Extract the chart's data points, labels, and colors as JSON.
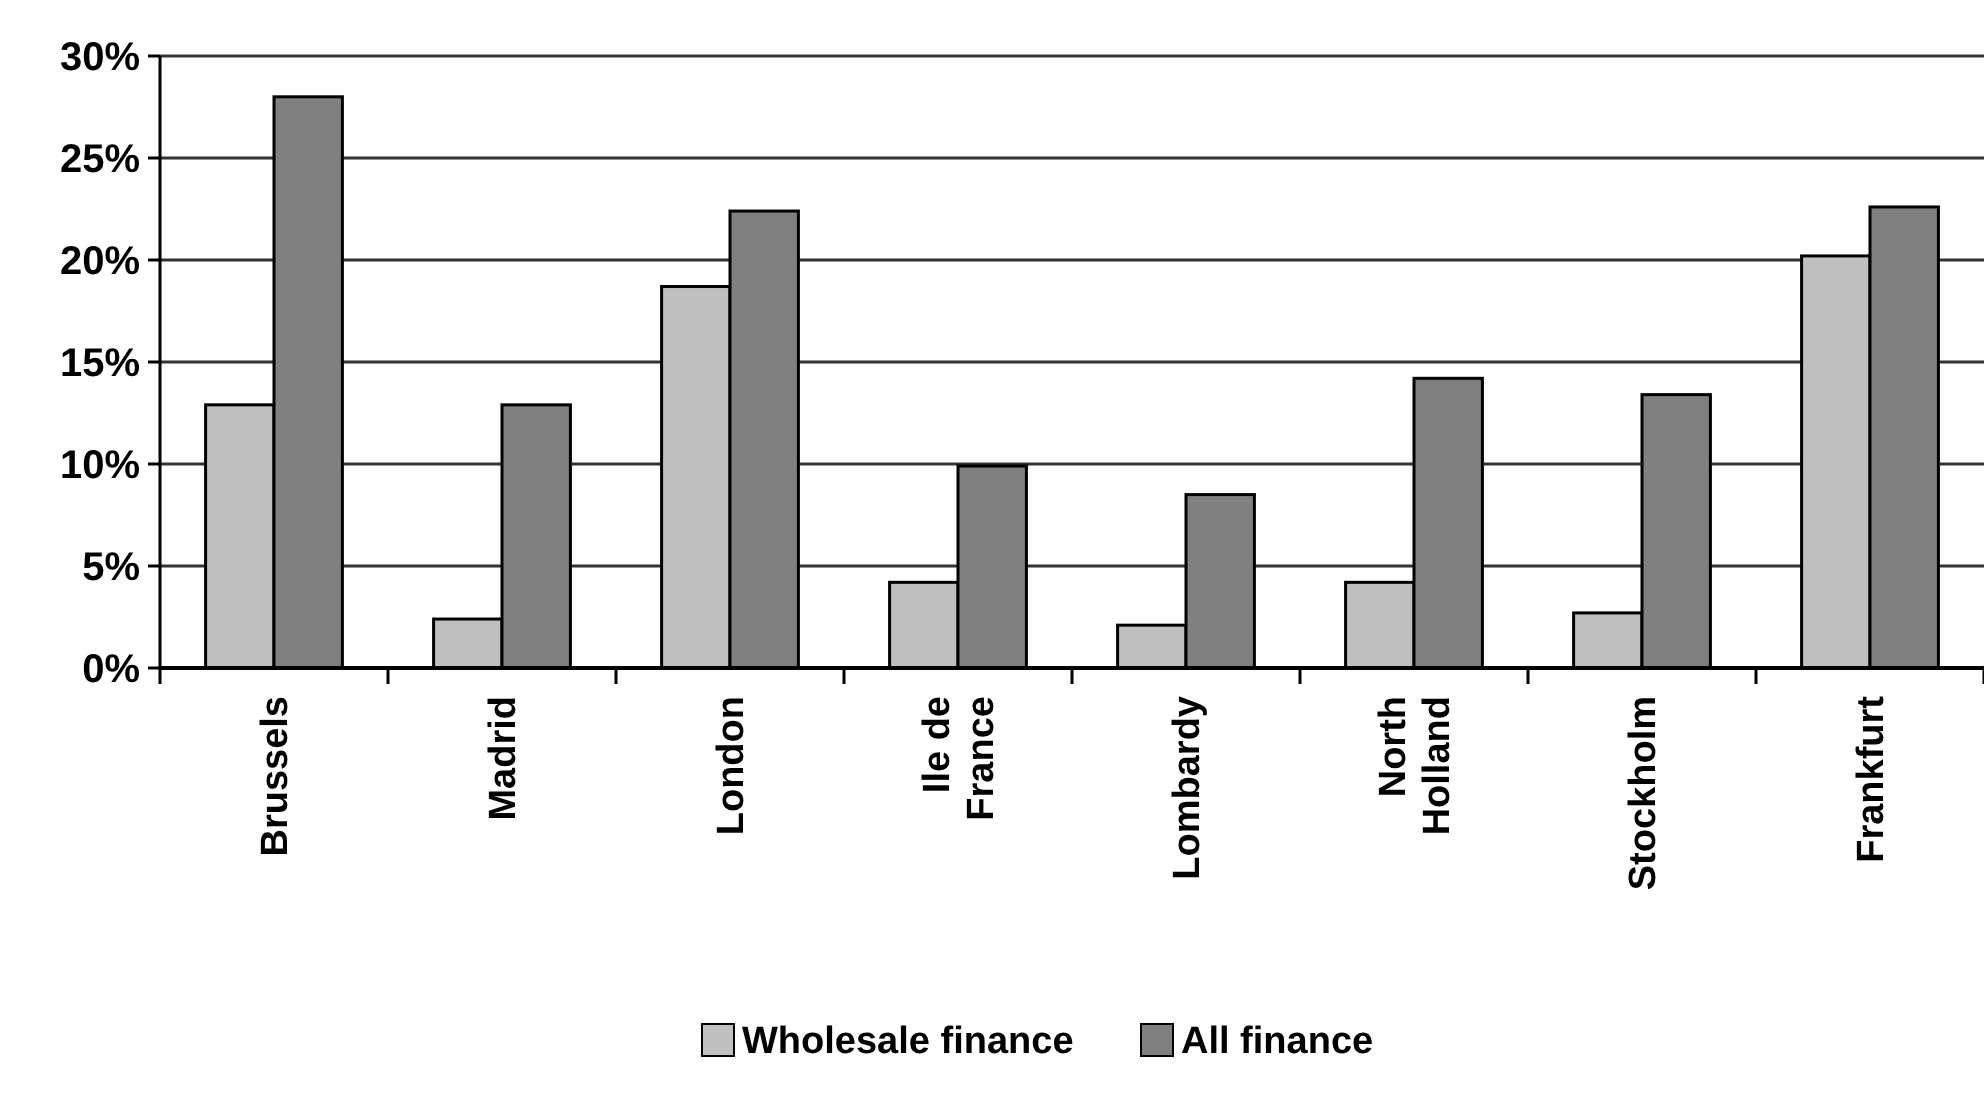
{
  "chart_data": {
    "type": "bar",
    "categories": [
      "Brussels",
      "Madrid",
      "London",
      "Ile de France",
      "Lombardy",
      "North Holland",
      "Stockholm",
      "Frankfurt"
    ],
    "series": [
      {
        "name": "Wholesale finance",
        "color": "#c0c0c0",
        "values": [
          12.9,
          2.4,
          18.7,
          4.2,
          2.1,
          4.2,
          2.7,
          20.2
        ]
      },
      {
        "name": "All finance",
        "color": "#808080",
        "values": [
          28.0,
          12.9,
          22.4,
          9.9,
          8.5,
          14.2,
          13.4,
          22.6
        ]
      }
    ],
    "ylim": [
      0,
      30
    ],
    "yticks": [
      {
        "value": 0,
        "label": "0%"
      },
      {
        "value": 5,
        "label": "5%"
      },
      {
        "value": 10,
        "label": "10%"
      },
      {
        "value": 15,
        "label": "15%"
      },
      {
        "value": 20,
        "label": "20%"
      },
      {
        "value": 25,
        "label": "25%"
      },
      {
        "value": 30,
        "label": "30%"
      }
    ],
    "grid": "y",
    "legend": "bottom"
  }
}
